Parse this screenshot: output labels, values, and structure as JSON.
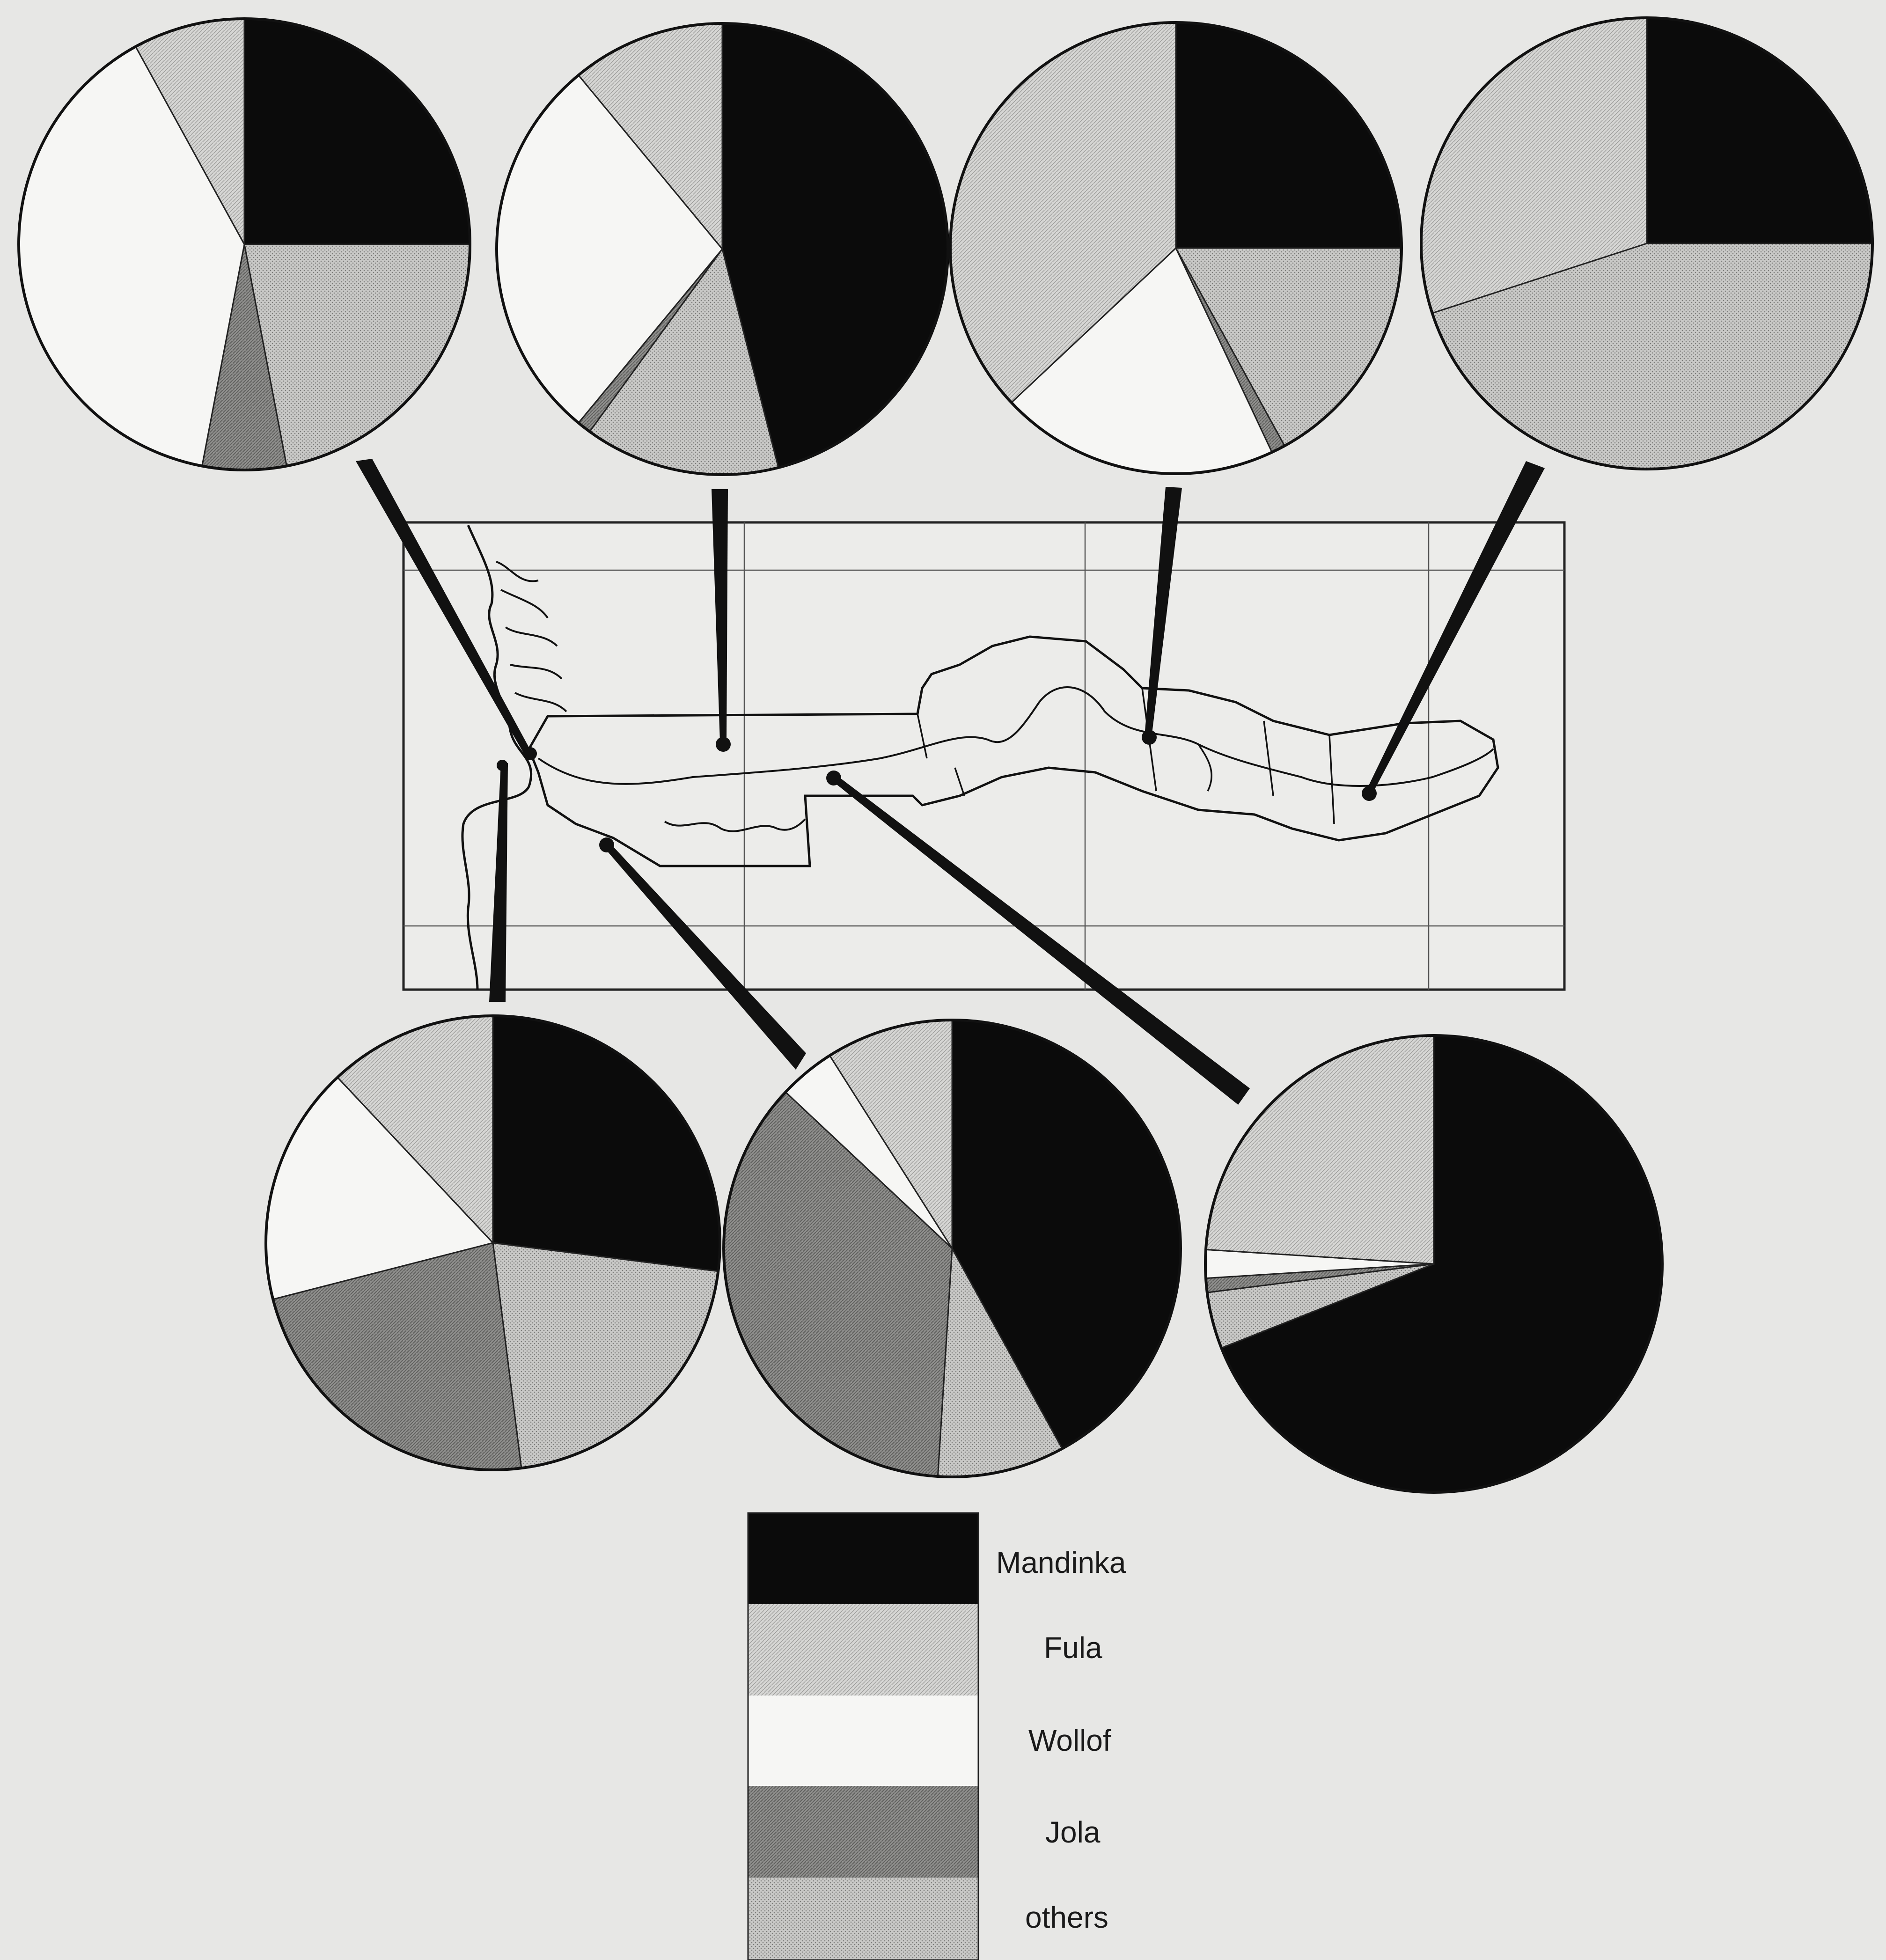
{
  "legend": {
    "items": [
      {
        "key": "mandinka",
        "label": "Mandinka",
        "pattern": "fill-mandinka"
      },
      {
        "key": "fula",
        "label": "Fula",
        "pattern": "fill-fula"
      },
      {
        "key": "wollof",
        "label": "Wollof",
        "pattern": "fill-wollof"
      },
      {
        "key": "jola",
        "label": "Jola",
        "pattern": "fill-jola"
      },
      {
        "key": "others",
        "label": "others",
        "pattern": "fill-others"
      }
    ]
  },
  "colors": {
    "background": "#e7e7e5",
    "ink": "#111111",
    "mandinka": "#0b0b0b",
    "fula": "#cfcfcd",
    "wollof": "#f6f6f4",
    "jola": "#8f8f8d",
    "others": "#bdbdbb"
  },
  "chart_data": [
    {
      "type": "pie",
      "region": "top-1",
      "order": [
        "Mandinka",
        "others",
        "Jola",
        "Wollof",
        "Fula"
      ],
      "values": [
        25,
        22,
        6,
        39,
        8
      ]
    },
    {
      "type": "pie",
      "region": "top-2",
      "order": [
        "Mandinka",
        "others",
        "Jola",
        "Wollof",
        "Fula"
      ],
      "values": [
        46,
        14,
        1,
        28,
        11
      ]
    },
    {
      "type": "pie",
      "region": "top-3",
      "order": [
        "Mandinka",
        "others",
        "Jola",
        "Wollof",
        "Fula"
      ],
      "values": [
        25,
        17,
        1,
        20,
        37
      ]
    },
    {
      "type": "pie",
      "region": "top-4",
      "order": [
        "Mandinka",
        "others",
        "Jola",
        "Wollof",
        "Fula"
      ],
      "values": [
        25,
        45,
        0,
        0,
        30
      ]
    },
    {
      "type": "pie",
      "region": "bottom-1",
      "order": [
        "Mandinka",
        "others",
        "Jola",
        "Wollof",
        "Fula"
      ],
      "values": [
        27,
        21,
        23,
        17,
        12
      ]
    },
    {
      "type": "pie",
      "region": "bottom-2",
      "order": [
        "Mandinka",
        "others",
        "Jola",
        "Wollof",
        "Fula"
      ],
      "values": [
        42,
        9,
        36,
        4,
        9
      ]
    },
    {
      "type": "pie",
      "region": "bottom-3",
      "order": [
        "Mandinka",
        "others",
        "Jola",
        "Wollof",
        "Fula"
      ],
      "values": [
        69,
        4,
        1,
        2,
        24
      ]
    }
  ]
}
